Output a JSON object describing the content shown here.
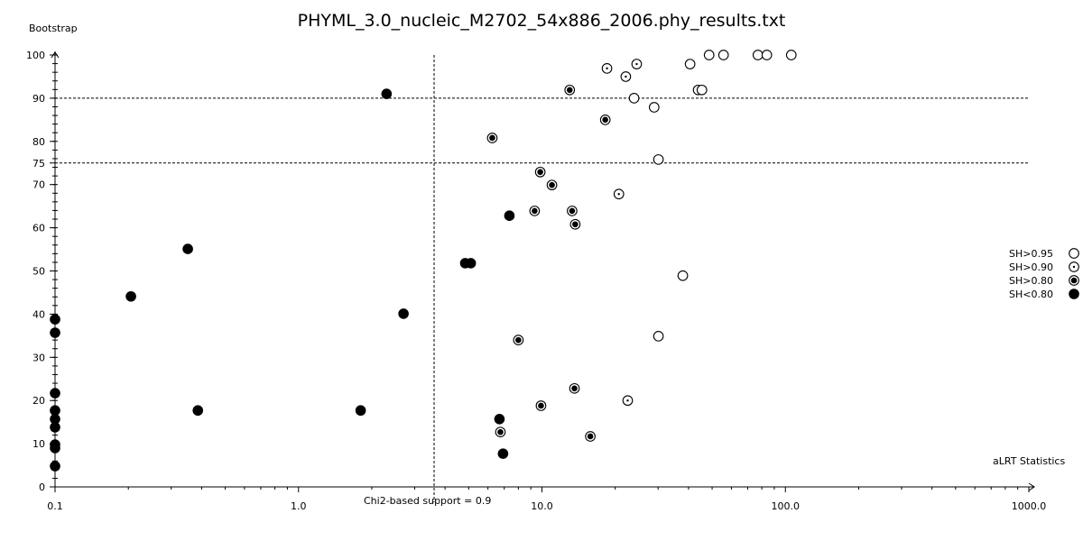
{
  "chart_data": {
    "type": "scatter",
    "title": "PHYML_3.0_nucleic_M2702_54x886_2006.phy_results.txt",
    "xlabel": "aLRT Statistics",
    "ylabel": "Bootstrap",
    "x_scale": "log",
    "xlim": [
      0.1,
      1000
    ],
    "ylim": [
      0,
      100
    ],
    "x_ticks": [
      "0.1",
      "1.0",
      "10.0",
      "100.0",
      "1000.0"
    ],
    "y_ticks": [
      "0",
      "10",
      "20",
      "30",
      "40",
      "50",
      "60",
      "70",
      "75",
      "80",
      "90",
      "100"
    ],
    "grid": false,
    "reference_lines": {
      "horizontal": [
        90,
        75
      ],
      "vertical": {
        "x": 3.6,
        "label": "Chi2-based support = 0.9"
      }
    },
    "legend_position": "right",
    "series": [
      {
        "name": "SH>0.95",
        "marker": "open-circle",
        "points": [
          [
            48.6,
            100
          ],
          [
            55.7,
            100
          ],
          [
            77.1,
            100
          ],
          [
            83.9,
            100
          ],
          [
            105.7,
            100
          ],
          [
            40.6,
            97.9
          ],
          [
            43.8,
            91.9
          ],
          [
            45.4,
            91.9
          ],
          [
            23.9,
            90
          ],
          [
            28.9,
            87.9
          ],
          [
            30.1,
            75.8
          ],
          [
            37.9,
            48.9
          ],
          [
            30.1,
            34.9
          ]
        ]
      },
      {
        "name": "SH>0.90",
        "marker": "circle-small-dot",
        "points": [
          [
            18.5,
            96.9
          ],
          [
            24.5,
            97.9
          ],
          [
            22.1,
            95
          ],
          [
            20.7,
            67.8
          ],
          [
            22.5,
            20
          ]
        ]
      },
      {
        "name": "SH>0.80",
        "marker": "circle-big-dot",
        "points": [
          [
            13.0,
            91.9
          ],
          [
            18.2,
            85
          ],
          [
            6.25,
            80.8
          ],
          [
            9.84,
            72.9
          ],
          [
            10.99,
            69.9
          ],
          [
            9.33,
            63.9
          ],
          [
            13.3,
            63.9
          ],
          [
            13.7,
            60.8
          ],
          [
            8.0,
            34
          ],
          [
            13.6,
            22.8
          ],
          [
            9.91,
            18.8
          ],
          [
            6.75,
            12.7
          ],
          [
            15.8,
            11.7
          ]
        ]
      },
      {
        "name": "SH<0.80",
        "marker": "filled-circle",
        "points": [
          [
            2.3,
            91
          ],
          [
            7.35,
            62.8
          ],
          [
            0.351,
            55.1
          ],
          [
            4.84,
            51.8
          ],
          [
            5.1,
            51.8
          ],
          [
            0.205,
            44.1
          ],
          [
            2.7,
            40.1
          ],
          [
            0.1,
            38.8
          ],
          [
            0.1,
            35.7
          ],
          [
            0.1,
            21.7
          ],
          [
            0.1,
            17.7
          ],
          [
            0.386,
            17.7
          ],
          [
            1.8,
            17.7
          ],
          [
            0.1,
            15.7
          ],
          [
            6.69,
            15.7
          ],
          [
            0.1,
            13.8
          ],
          [
            0.1,
            9.8
          ],
          [
            0.1,
            9.0
          ],
          [
            6.92,
            7.7
          ],
          [
            0.1,
            4.8
          ]
        ]
      }
    ]
  }
}
